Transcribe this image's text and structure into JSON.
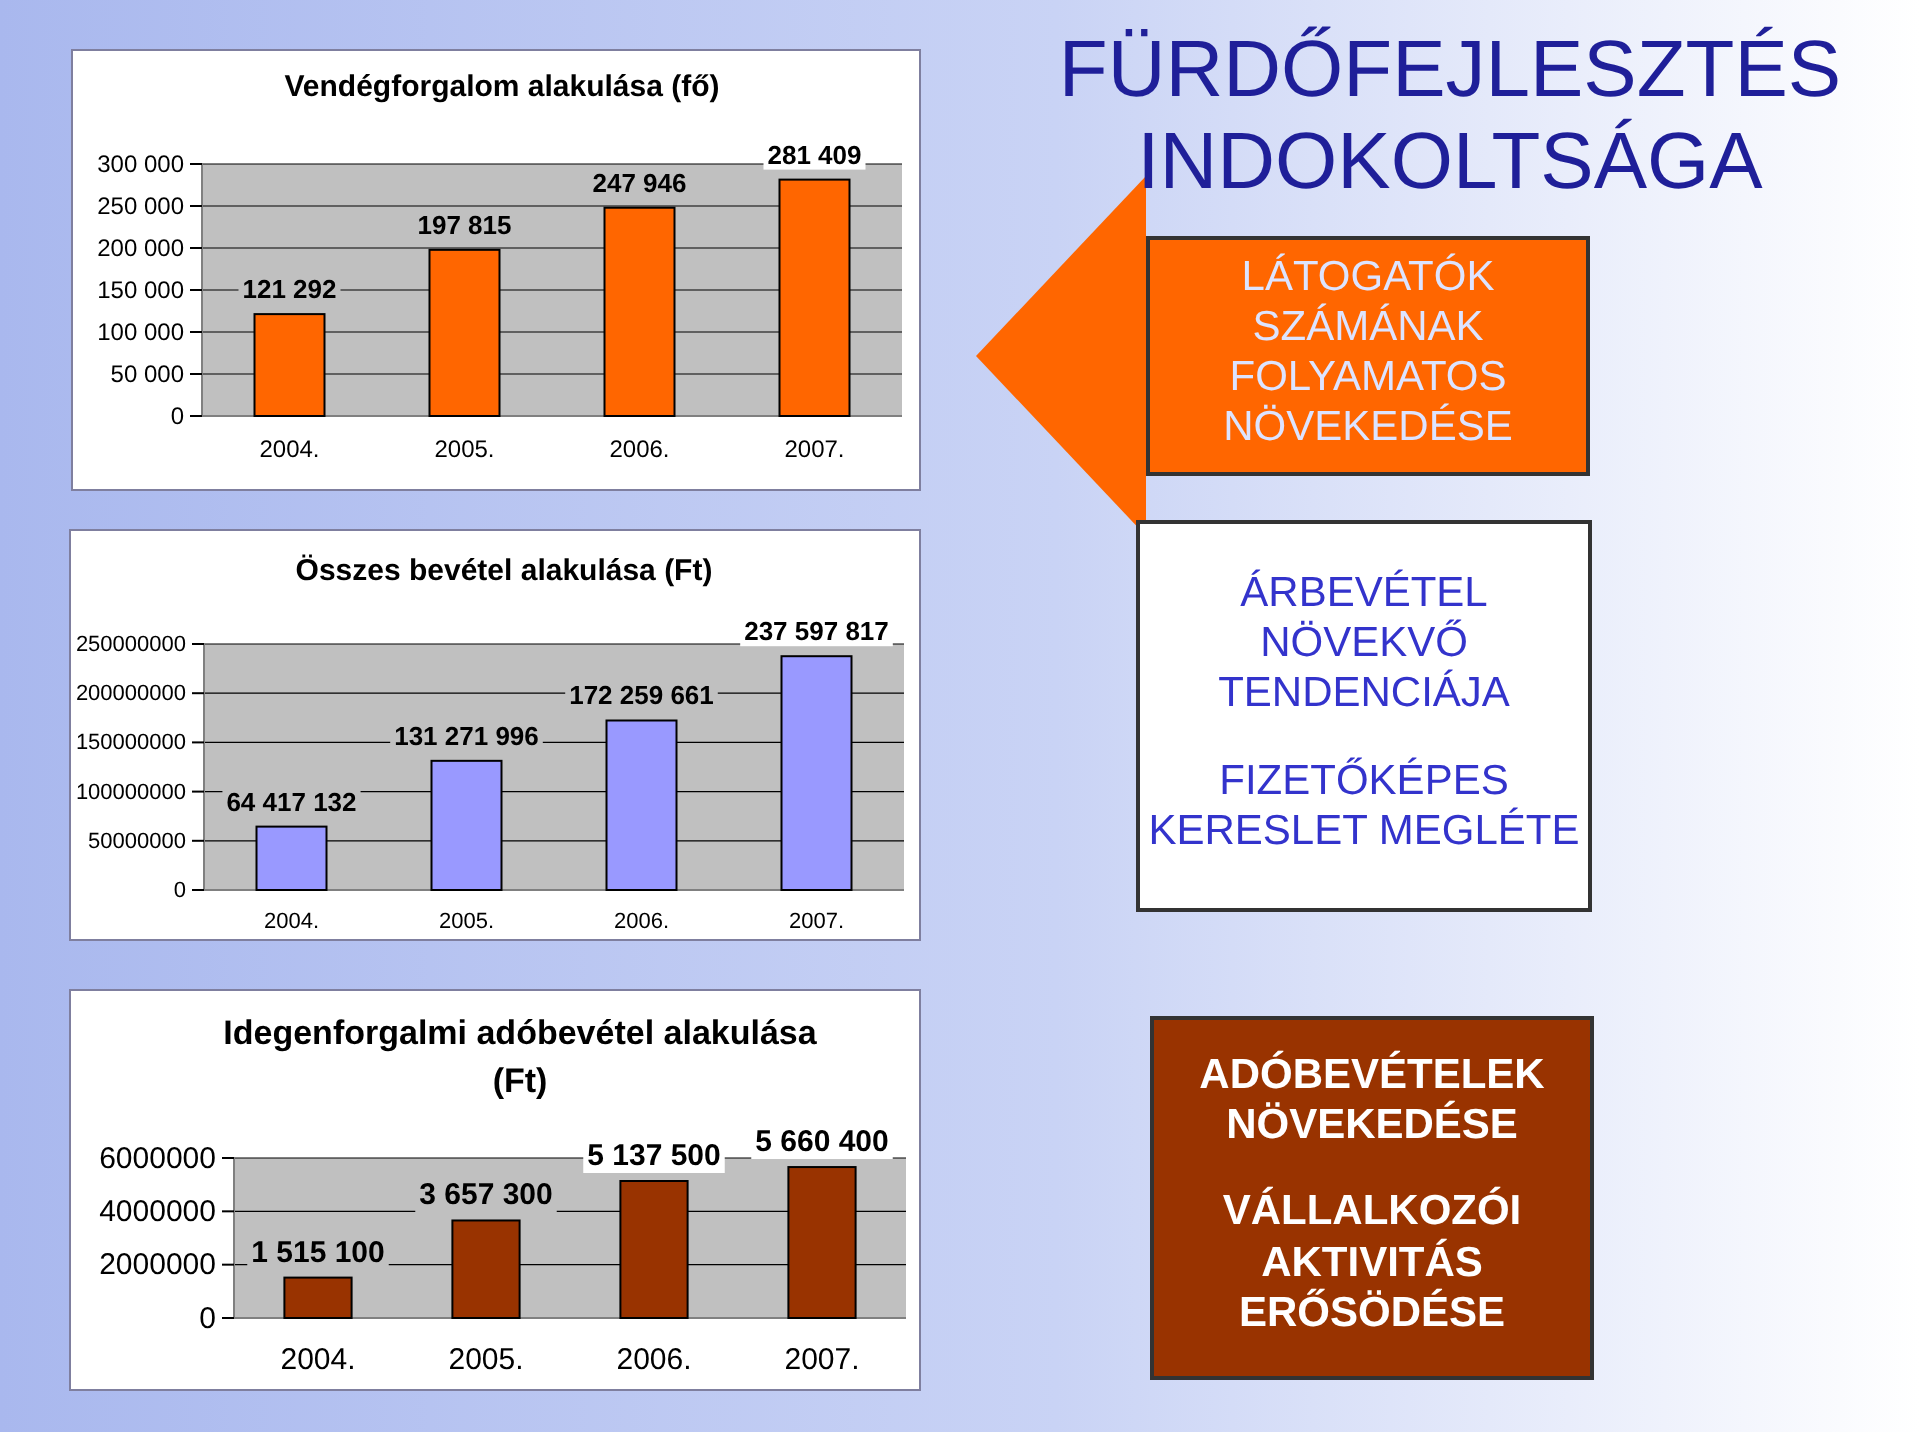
{
  "chart_data": [
    {
      "type": "bar",
      "title": "Vendégforgalom alakulása (fő)",
      "categories": [
        "2004.",
        "2005.",
        "2006.",
        "2007."
      ],
      "values": [
        121292,
        197815,
        247946,
        281409
      ],
      "value_labels": [
        "121 292",
        "197 815",
        "247 946",
        "281 409"
      ],
      "color": "#ff6600",
      "ylim": [
        0,
        300000
      ],
      "yticks": [
        0,
        {
          "value": 50000,
          "label": "50 000"
        },
        {
          "value": 100000,
          "label": "100 000"
        },
        {
          "value": 150000,
          "label": "150 000"
        },
        {
          "value": 200000,
          "label": "200 000"
        },
        {
          "value": 250000,
          "label": "250 000"
        },
        {
          "value": 300000,
          "label": "300 000"
        }
      ],
      "grid": "y"
    },
    {
      "type": "bar",
      "title": "Összes bevétel alakulása (Ft)",
      "categories": [
        "2004.",
        "2005.",
        "2006.",
        "2007."
      ],
      "values": [
        64417132,
        131271996,
        172259661,
        237597817
      ],
      "value_labels": [
        "64 417 132",
        "131 271 996",
        "172 259 661",
        "237 597 817"
      ],
      "color": "#9999ff",
      "ylim": [
        0,
        250000000
      ],
      "yticks": [
        0,
        50000000,
        100000000,
        150000000,
        200000000,
        250000000
      ],
      "grid": "y"
    },
    {
      "type": "bar",
      "title": "Idegenforgalmi adóbevétel alakulása (Ft)",
      "categories": [
        "2004.",
        "2005.",
        "2006.",
        "2007."
      ],
      "values": [
        1515100,
        3657300,
        5137500,
        5660400
      ],
      "value_labels": [
        "1 515 100",
        "3 657 300",
        "5 137 500",
        "5 660 400"
      ],
      "color": "#993300",
      "ylim": [
        0,
        6000000
      ],
      "yticks": [
        0,
        2000000,
        4000000,
        6000000
      ],
      "grid": "y"
    },
    {
      "type": "other",
      "title": "FÜRDŐFEJLESZTÉS INDOKOLTSÁGA"
    },
    {
      "type": "other",
      "annotations": [
        "LÁTOGATÓK SZÁMÁNAK FOLYAMATOS NÖVEKEDÉSE"
      ],
      "color": "#ff6600"
    },
    {
      "type": "other",
      "annotations": [
        "ÁRBEVÉTEL NÖVEKVŐ TENDENCIÁJA",
        "FIZETŐKÉPES KERESLET MEGLÉTE"
      ],
      "color": "#ffffff"
    },
    {
      "type": "other",
      "annotations": [
        "ADÓBEVÉTELEK NÖVEKEDÉSE",
        "VÁLLALKOZÓI AKTIVITÁS ERŐSÖDÉSE"
      ],
      "color": "#993300"
    }
  ]
}
